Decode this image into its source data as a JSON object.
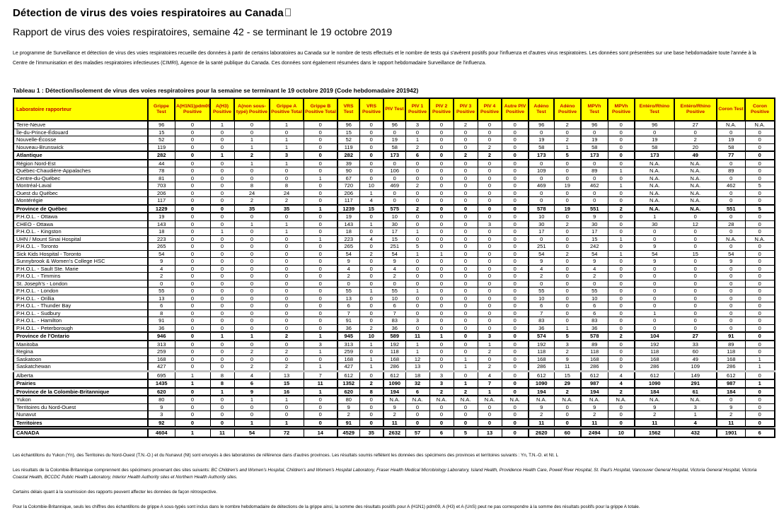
{
  "page": {
    "title": "Détection de virus des voies respiratoires au Canada",
    "subtitle": "Rapport de virus des voies respiratoires, semaine 42 - se terminant le 19 octobre 2019",
    "intro": "Le programme de Surveillance et détection de virus des voies respiratoires recueille des données à partir de certains laboratoires au Canada sur le nombre de tests effectués et le nombre de tests qui s'avèrent positifs pour l'influenza et d'autres virus respiratoires. Les données sont présentées sur une base hebdomadaire toute l'année à la Centre de l'immunisation et des maladies respiratoires infectieuses (CIMRI), Agence de la santé publique du Canada. Ces données sont également résumées dans le rapport hebdomadaire Surveillance de l'influenza.",
    "table_caption": "Tableau 1 : Détection/isolement de virus des voies respiratoires pour la semaine se terminant le 19 octobre 2019 (Code hebdomadaire 201942)"
  },
  "style": {
    "header_bg": "#ffff00",
    "header_text": "#c00000"
  },
  "table": {
    "columns": [
      "Laboratoire rapporteur",
      "Grippe Test",
      "A(H1N1)pdm09 Positive",
      "A(H3) Positive",
      "A(non sous-typé) Positive",
      "Grippe A Positive Total",
      "Grippe B Positive Total",
      "VRS Test",
      "VRS Positive",
      "PIV Test",
      "PIV 1 Positive",
      "PIV 2 Positive",
      "PIV 3 Positive",
      "PIV 4 Positive",
      "Autre PIV Positive",
      "Adéno Test",
      "Adéno Positive",
      "MPVh Test",
      "MPVh Positive",
      "Entéro/Rhino Test",
      "Entéro/Rhino Positive",
      "Coron Test",
      "Coron Positive"
    ],
    "rows": [
      {
        "label": "Terre-Neuve",
        "values": [
          96,
          0,
          1,
          0,
          1,
          0,
          96,
          0,
          96,
          3,
          0,
          2,
          0,
          0,
          96,
          2,
          96,
          0,
          96,
          27,
          "N.A.",
          "N.A."
        ]
      },
      {
        "label": "Île-du-Prince-Édouard",
        "values": [
          15,
          0,
          0,
          0,
          0,
          0,
          15,
          0,
          0,
          0,
          0,
          0,
          0,
          0,
          0,
          0,
          0,
          0,
          0,
          0,
          0,
          0
        ]
      },
      {
        "label": "Nouvelle-Écosse",
        "values": [
          52,
          0,
          0,
          1,
          1,
          0,
          52,
          0,
          19,
          1,
          0,
          0,
          0,
          0,
          19,
          2,
          19,
          0,
          19,
          2,
          19,
          0
        ]
      },
      {
        "label": "Nouveau-Brunswick",
        "values": [
          119,
          0,
          0,
          1,
          1,
          0,
          119,
          0,
          58,
          2,
          0,
          0,
          2,
          0,
          58,
          1,
          58,
          0,
          58,
          20,
          58,
          0
        ]
      },
      {
        "label": "Atlantique",
        "total": true,
        "values": [
          282,
          0,
          1,
          2,
          3,
          0,
          282,
          0,
          173,
          6,
          0,
          2,
          2,
          0,
          173,
          5,
          173,
          0,
          173,
          49,
          77,
          0
        ]
      },
      {
        "label": "Région Nord-Est",
        "values": [
          44,
          0,
          0,
          1,
          1,
          0,
          39,
          0,
          0,
          0,
          0,
          0,
          0,
          0,
          0,
          0,
          0,
          0,
          "N.A.",
          "N.A.",
          0,
          0
        ]
      },
      {
        "label": "Québec-Chaudière-Appalaches",
        "values": [
          78,
          0,
          0,
          0,
          0,
          0,
          90,
          0,
          106,
          0,
          0,
          0,
          0,
          0,
          109,
          0,
          89,
          1,
          "N.A.",
          "N.A.",
          89,
          0
        ]
      },
      {
        "label": "Centre-du-Québec",
        "values": [
          81,
          0,
          0,
          0,
          0,
          1,
          67,
          0,
          0,
          0,
          0,
          0,
          0,
          0,
          0,
          0,
          0,
          0,
          "N.A.",
          "N.A.",
          0,
          0
        ]
      },
      {
        "label": "Montréal-Laval",
        "values": [
          703,
          0,
          0,
          8,
          8,
          0,
          720,
          10,
          469,
          2,
          0,
          0,
          0,
          0,
          469,
          19,
          462,
          1,
          "N.A.",
          "N.A.",
          462,
          5
        ]
      },
      {
        "label": "Ouest du Québec",
        "values": [
          206,
          0,
          0,
          24,
          24,
          0,
          206,
          1,
          0,
          0,
          0,
          0,
          0,
          0,
          0,
          0,
          0,
          0,
          "N.A.",
          "N.A.",
          0,
          0
        ]
      },
      {
        "label": "Montérégie",
        "values": [
          117,
          0,
          0,
          2,
          2,
          0,
          117,
          4,
          0,
          0,
          0,
          0,
          0,
          0,
          0,
          0,
          0,
          0,
          "N.A.",
          "N.A.",
          0,
          0
        ]
      },
      {
        "label": "Province de Québec",
        "total": true,
        "values": [
          1229,
          0,
          0,
          35,
          35,
          1,
          1239,
          15,
          575,
          2,
          0,
          0,
          0,
          0,
          578,
          19,
          551,
          2,
          "N.A.",
          "N.A.",
          551,
          5
        ]
      },
      {
        "label": "P.H.O.L. - Ottawa",
        "values": [
          19,
          0,
          0,
          0,
          0,
          0,
          19,
          0,
          10,
          0,
          0,
          0,
          0,
          0,
          10,
          0,
          9,
          0,
          1,
          0,
          0,
          0
        ]
      },
      {
        "label": "CHEO - Ottawa",
        "values": [
          143,
          0,
          0,
          1,
          1,
          0,
          143,
          1,
          30,
          0,
          0,
          0,
          3,
          0,
          30,
          2,
          30,
          0,
          30,
          12,
          28,
          0
        ]
      },
      {
        "label": "P.H.O.L. - Kingston",
        "values": [
          18,
          0,
          1,
          0,
          1,
          0,
          18,
          0,
          17,
          1,
          0,
          0,
          0,
          0,
          17,
          0,
          17,
          0,
          0,
          0,
          0,
          0
        ]
      },
      {
        "label": "UHN / Mount Sinai Hospital",
        "values": [
          223,
          0,
          0,
          0,
          0,
          1,
          223,
          4,
          15,
          0,
          0,
          0,
          0,
          0,
          0,
          0,
          15,
          1,
          0,
          0,
          "N.A.",
          "N.A."
        ]
      },
      {
        "label": "P.H.O.L. - Toronto",
        "values": [
          265,
          0,
          0,
          0,
          0,
          0,
          265,
          0,
          251,
          5,
          0,
          0,
          0,
          0,
          251,
          0,
          242,
          0,
          9,
          0,
          0,
          0
        ]
      },
      {
        "label": "Sick Kids Hospital - Toronto",
        "values": [
          54,
          0,
          0,
          0,
          0,
          0,
          54,
          2,
          54,
          1,
          1,
          0,
          0,
          0,
          54,
          2,
          54,
          1,
          54,
          15,
          54,
          0
        ]
      },
      {
        "label": "Sunnybrook & Women's College HSC",
        "values": [
          9,
          0,
          0,
          0,
          0,
          0,
          9,
          0,
          9,
          0,
          0,
          0,
          0,
          0,
          9,
          0,
          9,
          0,
          9,
          0,
          9,
          0
        ]
      },
      {
        "label": "P.H.O.L. - Sault Ste. Marie",
        "values": [
          4,
          0,
          0,
          0,
          0,
          0,
          4,
          0,
          4,
          0,
          0,
          0,
          0,
          0,
          4,
          0,
          4,
          0,
          0,
          0,
          0,
          0
        ]
      },
      {
        "label": "P.H.O.L. - Timmins",
        "values": [
          2,
          0,
          0,
          0,
          0,
          0,
          2,
          0,
          2,
          0,
          0,
          0,
          0,
          0,
          2,
          0,
          2,
          0,
          0,
          0,
          0,
          0
        ]
      },
      {
        "label": "St. Joseph's - London",
        "values": [
          0,
          0,
          0,
          0,
          0,
          0,
          0,
          0,
          0,
          0,
          0,
          0,
          0,
          0,
          0,
          0,
          0,
          0,
          0,
          0,
          0,
          0
        ]
      },
      {
        "label": "P.H.O.L. - London",
        "values": [
          55,
          0,
          0,
          0,
          0,
          0,
          55,
          1,
          55,
          1,
          0,
          0,
          0,
          0,
          55,
          0,
          55,
          0,
          0,
          0,
          0,
          0
        ]
      },
      {
        "label": "P.H.O.L. - Orillia",
        "values": [
          13,
          0,
          0,
          0,
          0,
          0,
          13,
          0,
          10,
          0,
          0,
          0,
          0,
          0,
          10,
          0,
          10,
          0,
          0,
          0,
          0,
          0
        ]
      },
      {
        "label": "P.H.O.L. - Thunder Bay",
        "values": [
          6,
          0,
          0,
          0,
          0,
          0,
          6,
          0,
          6,
          0,
          0,
          0,
          0,
          0,
          6,
          0,
          6,
          0,
          0,
          0,
          0,
          0
        ]
      },
      {
        "label": "P.H.O.L. - Sudbury",
        "values": [
          8,
          0,
          0,
          0,
          0,
          0,
          7,
          0,
          7,
          0,
          0,
          0,
          0,
          0,
          7,
          0,
          6,
          0,
          1,
          0,
          0,
          0
        ]
      },
      {
        "label": "P.H.O.L. - Hamilton",
        "values": [
          91,
          0,
          0,
          0,
          0,
          0,
          91,
          0,
          83,
          3,
          0,
          0,
          0,
          0,
          83,
          0,
          83,
          0,
          0,
          0,
          0,
          0
        ]
      },
      {
        "label": "P.H.O.L. - Peterborough",
        "values": [
          36,
          0,
          0,
          0,
          0,
          0,
          36,
          2,
          36,
          0,
          0,
          0,
          0,
          0,
          36,
          1,
          36,
          0,
          0,
          0,
          0,
          0
        ]
      },
      {
        "label": "Province de l'Ontario",
        "total": true,
        "values": [
          946,
          0,
          1,
          1,
          2,
          1,
          945,
          10,
          589,
          11,
          1,
          0,
          3,
          0,
          574,
          5,
          578,
          2,
          104,
          27,
          91,
          0
        ]
      },
      {
        "label": "Manitoba",
        "values": [
          313,
          0,
          0,
          0,
          0,
          3,
          313,
          1,
          192,
          1,
          0,
          0,
          1,
          0,
          192,
          3,
          89,
          0,
          192,
          33,
          89,
          0
        ]
      },
      {
        "label": "Regina",
        "values": [
          259,
          0,
          0,
          2,
          2,
          1,
          259,
          0,
          118,
          1,
          0,
          0,
          2,
          0,
          118,
          2,
          118,
          0,
          118,
          60,
          118,
          0
        ]
      },
      {
        "label": "Saskatoon",
        "values": [
          168,
          0,
          0,
          0,
          0,
          0,
          168,
          1,
          168,
          12,
          0,
          1,
          0,
          0,
          168,
          9,
          168,
          0,
          168,
          49,
          168,
          1
        ]
      },
      {
        "label": "Saskatchewan",
        "sep": true,
        "values": [
          427,
          0,
          0,
          2,
          2,
          1,
          427,
          1,
          286,
          13,
          0,
          1,
          2,
          0,
          286,
          11,
          286,
          0,
          286,
          109,
          286,
          1
        ]
      },
      {
        "label": "Alberta",
        "values": [
          695,
          1,
          8,
          4,
          13,
          7,
          612,
          0,
          612,
          18,
          3,
          0,
          4,
          0,
          612,
          15,
          612,
          4,
          612,
          149,
          612,
          0
        ]
      },
      {
        "label": "Prairies",
        "total": true,
        "values": [
          1435,
          1,
          8,
          6,
          15,
          11,
          1352,
          2,
          1090,
          32,
          3,
          1,
          7,
          0,
          1090,
          29,
          987,
          4,
          1090,
          291,
          987,
          1
        ]
      },
      {
        "label": "Province de la Colombie-Britannique",
        "total": true,
        "values": [
          620,
          0,
          1,
          9,
          16,
          1,
          620,
          8,
          194,
          6,
          2,
          2,
          1,
          0,
          194,
          2,
          194,
          2,
          184,
          61,
          184,
          0
        ]
      },
      {
        "label": "Yukon",
        "values": [
          80,
          0,
          0,
          1,
          1,
          0,
          80,
          0,
          "N.A.",
          "N.A.",
          "N.A.",
          "N.A.",
          "N.A.",
          "N.A.",
          "N.A.",
          "N.A.",
          "N.A.",
          "N.A.",
          "N.A.",
          "N.A.",
          0,
          0
        ]
      },
      {
        "label": "Territoires du Nord-Ouest",
        "values": [
          9,
          0,
          0,
          0,
          0,
          0,
          9,
          0,
          9,
          0,
          0,
          0,
          0,
          0,
          9,
          0,
          9,
          0,
          9,
          3,
          9,
          0
        ]
      },
      {
        "label": "Nunavut",
        "values": [
          3,
          0,
          0,
          0,
          0,
          0,
          2,
          0,
          2,
          0,
          0,
          0,
          0,
          0,
          2,
          0,
          2,
          0,
          2,
          1,
          2,
          0
        ]
      },
      {
        "label": "Territoires",
        "total": true,
        "values": [
          92,
          0,
          0,
          1,
          1,
          0,
          91,
          0,
          11,
          0,
          0,
          0,
          0,
          0,
          11,
          0,
          11,
          0,
          11,
          4,
          11,
          0
        ]
      },
      {
        "label": "CANADA",
        "total": true,
        "grand": true,
        "values": [
          4604,
          1,
          11,
          54,
          72,
          14,
          4529,
          35,
          2632,
          57,
          6,
          5,
          13,
          0,
          2620,
          60,
          2494,
          10,
          1562,
          432,
          1901,
          6
        ]
      }
    ]
  },
  "footnotes": {
    "note1": "Les échantillons du Yukon (Yn), des Territoires du Nord-Ouest (T.N.-O.) et du Nunavut (Nt) sont envoyés à des laboratoires de référence dans d'autres provinces. Les résultats soumis reflètent les données des spécimens des provinces et territoires suivants : Yn, T.N.-O. et Nt. L",
    "note2_intro": "Les résultats de la Colombie-Britannique comprennent des spécimens provenant des sites suivants: ",
    "note2_sites": "BC Children's and Women's Hospital, Children's and Women's Hospital Laboratory, Fraser Health Medical Microbiology Laboratory, Island Health, Providence Health Care, Powell River Hospital, St. Paul's Hospital, Vancouver General Hospital, Victoria General Hospital, Victoria Coastal Health, BCCDC Public Health Laboratory, Interior Health Authority sites",
    "note2_tail": " et Northern Health Authority sites.",
    "note3": "Certains délais quant à la soumission des rapports peuvent affecter les données de façon rétrospective.",
    "note4": "Pour la Colombie-Britannique, seuls les chiffres des échantillons de grippe A sous-typés sont inclus dans le nombre hebdomadaire de détections de la grippe ainsi, la somme des résultats positifs pour A (H1N1) pdm09, A (H3) et A (UnS) peut ne pas correspondre à la somme des résultats positifs pour la grippe A totale."
  }
}
